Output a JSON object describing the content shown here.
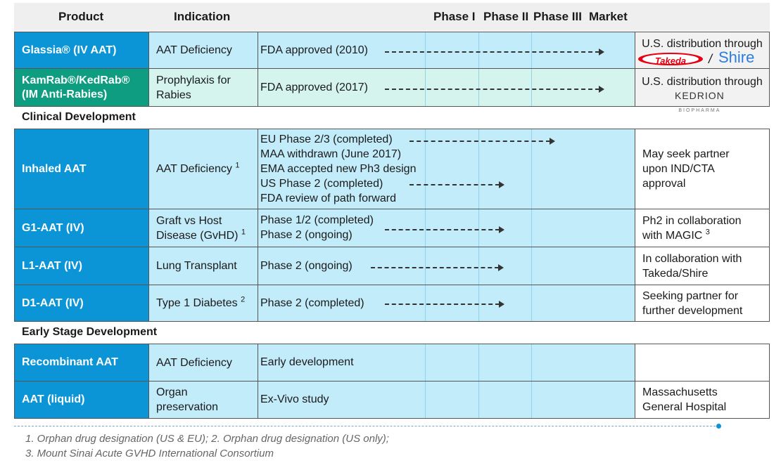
{
  "header": {
    "product": "Product",
    "indication": "Indication",
    "phase1": "Phase I",
    "phase2": "Phase II",
    "phase3": "Phase III",
    "market": "Market"
  },
  "sections": {
    "clinical": "Clinical Development",
    "early": "Early Stage Development"
  },
  "rows": {
    "glassia": {
      "product": "Glassia® (IV AAT)",
      "indication": "AAT Deficiency",
      "phase": "FDA approved (2010)",
      "market": "U.S. distribution through",
      "logo1": "Takeda",
      "logo_sep": "/",
      "logo2": "Shire"
    },
    "kamrab": {
      "product_line1": "KamRab®/KedRab®",
      "product_line2": "(IM Anti-Rabies)",
      "indication_line1": "Prophylaxis for",
      "indication_line2": "Rabies",
      "phase": "FDA approved (2017)",
      "market": "U.S. distribution through",
      "logo": "KEDRION",
      "logo_sub": "BIOPHARMA"
    },
    "inhaled": {
      "product": "Inhaled AAT",
      "indication": "AAT Deficiency",
      "indication_sup": "1",
      "phase_lines": [
        "EU Phase 2/3 (completed)",
        "MAA withdrawn (June 2017)",
        "EMA accepted new Ph3 design",
        "US Phase 2 (completed)",
        "FDA review of path forward"
      ],
      "market_line1": "May seek partner",
      "market_line2": "upon IND/CTA",
      "market_line3": "approval"
    },
    "g1": {
      "product": "G1-AAT (IV)",
      "indication_line1": "Graft vs Host",
      "indication_line2": "Disease (GvHD)",
      "indication_sup": "1",
      "phase_line1": "Phase 1/2 (completed)",
      "phase_line2": "Phase 2 (ongoing)",
      "market_line1": "Ph2 in collaboration",
      "market_line2": "with MAGIC",
      "market_sup": "3"
    },
    "l1": {
      "product": "L1-AAT (IV)",
      "indication": "Lung Transplant",
      "phase": "Phase 2 (ongoing)",
      "market_line1": "In collaboration with",
      "market_line2": "Takeda/Shire"
    },
    "d1": {
      "product": "D1-AAT (IV)",
      "indication": "Type 1 Diabetes",
      "indication_sup": "2",
      "phase": "Phase 2 (completed)",
      "market_line1": "Seeking partner for",
      "market_line2": "further development"
    },
    "recombinant": {
      "product": "Recombinant AAT",
      "indication": "AAT Deficiency",
      "phase": "Early development",
      "market": ""
    },
    "liquid": {
      "product": "AAT (liquid)",
      "indication_line1": "Organ",
      "indication_line2": "preservation",
      "phase": "Ex-Vivo study",
      "market_line1": "Massachusetts",
      "market_line2": "General Hospital"
    }
  },
  "footnotes": {
    "line1": "1.  Orphan drug designation (US & EU); 2. Orphan drug designation (US only);",
    "line2": "3.  Mount Sinai Acute GVHD International Consortium"
  },
  "colors": {
    "product_blue": "#0b95d6",
    "product_green": "#0e9d80",
    "cell_blue": "#c3ecfb",
    "cell_green": "#d4f4ed",
    "takeda_red": "#e60012",
    "shire_blue": "#2a7de1"
  }
}
